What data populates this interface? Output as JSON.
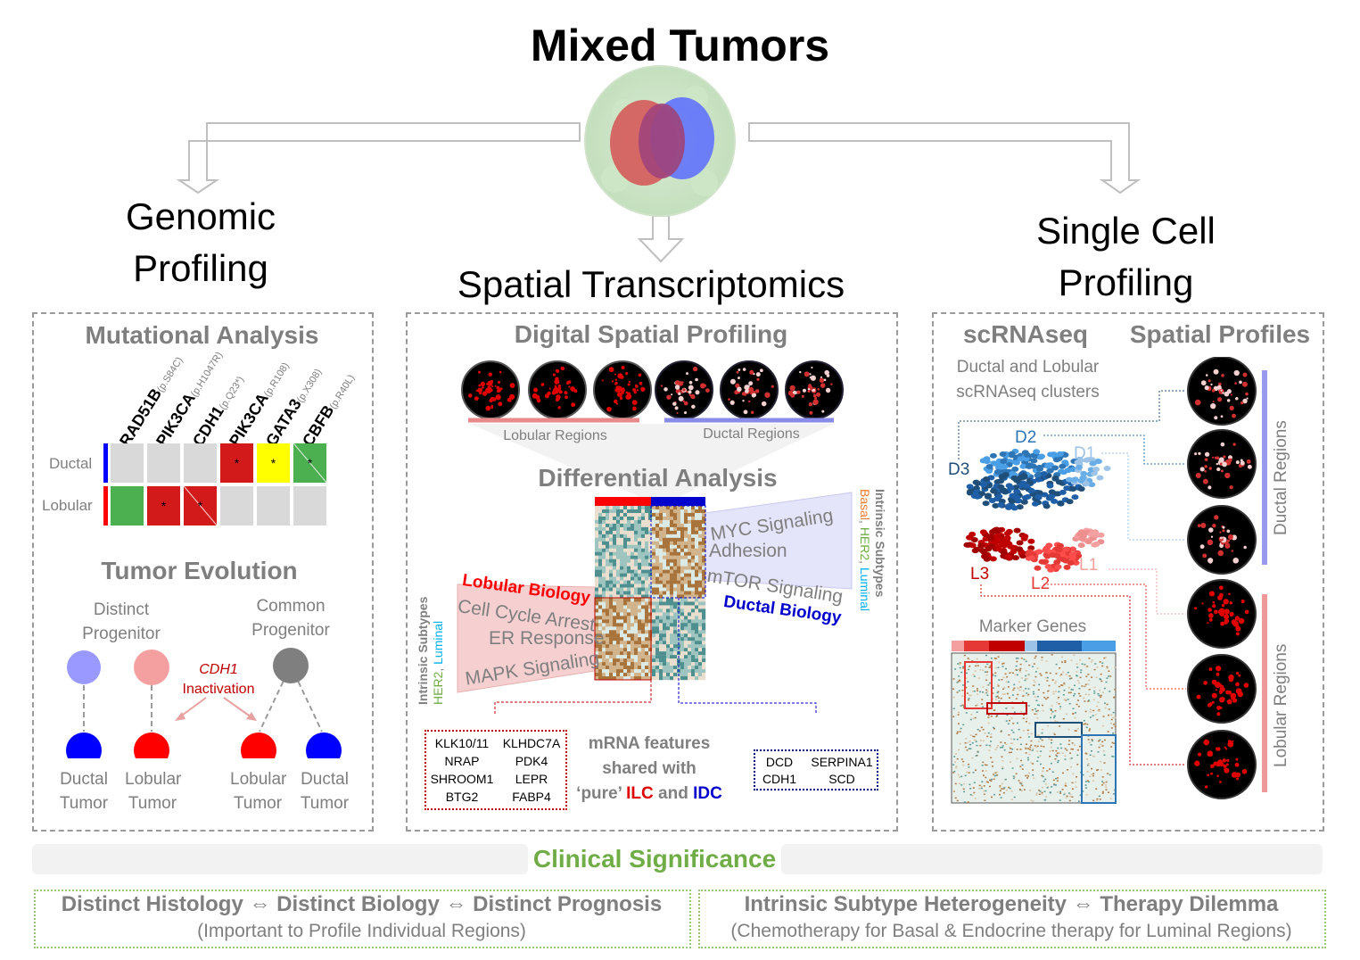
{
  "title": "Mixed Tumors",
  "sections": {
    "genomic": [
      "Genomic",
      "Profiling"
    ],
    "spatial": "Spatial Transcriptomics",
    "single_cell": [
      "Single Cell",
      "Profiling"
    ]
  },
  "genomic": {
    "mutational_title": "Mutational Analysis",
    "genes": [
      {
        "name": "RAD51B",
        "variant": "(p.S84C)"
      },
      {
        "name": "PIK3CA",
        "variant": "(p.H1047R)"
      },
      {
        "name": "CDH1",
        "variant": "(p.Q23*)"
      },
      {
        "name": "PIK3CA",
        "variant": "(p.R108)"
      },
      {
        "name": "GATA3",
        "variant": "(p.X308)"
      },
      {
        "name": "CBFB",
        "variant": "(p.R40L)"
      }
    ],
    "rows": [
      {
        "label": "Ductal",
        "bar_color": "#0000ff",
        "cells": [
          {
            "color": "#d9d9d9",
            "mark": ""
          },
          {
            "color": "#d9d9d9",
            "mark": ""
          },
          {
            "color": "#d9d9d9",
            "mark": ""
          },
          {
            "color": "#d21a1a",
            "mark": "*"
          },
          {
            "color": "#ffff00",
            "mark": "*"
          },
          {
            "color": "#4caf50",
            "mark": "*",
            "split": true
          }
        ]
      },
      {
        "label": "Lobular",
        "bar_color": "#ff0000",
        "cells": [
          {
            "color": "#4caf50",
            "mark": ""
          },
          {
            "color": "#d21a1a",
            "mark": "*"
          },
          {
            "color": "#d21a1a",
            "mark": "*",
            "split": true
          },
          {
            "color": "#d9d9d9",
            "mark": ""
          },
          {
            "color": "#d9d9d9",
            "mark": ""
          },
          {
            "color": "#d9d9d9",
            "mark": ""
          }
        ]
      }
    ],
    "evolution_title": "Tumor Evolution",
    "distinct_progenitor": [
      "Distinct",
      "Progenitor"
    ],
    "common_progenitor": [
      "Common",
      "Progenitor"
    ],
    "inactivation": [
      "CDH1",
      "Inactivation"
    ],
    "tumors": [
      [
        "Ductal",
        "Tumor"
      ],
      [
        "Lobular",
        "Tumor"
      ],
      [
        "Lobular",
        "Tumor"
      ],
      [
        "Ductal",
        "Tumor"
      ]
    ]
  },
  "spatial": {
    "dsp_title": "Digital Spatial Profiling",
    "lobular_regions": "Lobular Regions",
    "ductal_regions": "Ductal Regions",
    "diff_title": "Differential Analysis",
    "lobular_biology": "Lobular Biology",
    "ductal_biology": "Ductal Biology",
    "lobular_pathways": [
      "Cell Cycle Arrest",
      "ER Response",
      "MAPK Signaling"
    ],
    "ductal_pathways": [
      "MYC Signaling",
      "Adhesion",
      "mTOR Signaling"
    ],
    "intrinsic_subtypes": "Intrinsic Subtypes",
    "left_subtypes": [
      {
        "t": "HER2",
        "c": "#70ad47"
      },
      {
        "t": ", ",
        "c": "#7f7f7f"
      },
      {
        "t": "Luminal",
        "c": "#00b0f0"
      }
    ],
    "right_subtypes": [
      {
        "t": "Basal",
        "c": "#ed7d31"
      },
      {
        "t": ", ",
        "c": "#7f7f7f"
      },
      {
        "t": "HER2",
        "c": "#70ad47"
      },
      {
        "t": ", ",
        "c": "#7f7f7f"
      },
      {
        "t": "Luminal",
        "c": "#00b0f0"
      }
    ],
    "lobular_genes": [
      "KLK10/11",
      "KLHDC7A",
      "NRAP",
      "PDK4",
      "SHROOM1",
      "LEPR",
      "BTG2",
      "FABP4"
    ],
    "ductal_genes": [
      "DCD",
      "SERPINA1",
      "CDH1",
      "SCD"
    ],
    "mrna_line1": "mRNA features",
    "mrna_line2": "shared with",
    "mrna_pure": "‘pure’",
    "mrna_ilc": "ILC",
    "mrna_and": "and",
    "mrna_idc": "IDC"
  },
  "single_cell": {
    "scrna_title": "scRNAseq",
    "spatial_profiles_title": "Spatial Profiles",
    "clusters_caption": [
      "Ductal and Lobular",
      "scRNAseq clusters"
    ],
    "cluster_labels": [
      {
        "t": "D2",
        "c": "#2e75b6"
      },
      {
        "t": "D1",
        "c": "#9dc3e6"
      },
      {
        "t": "D3",
        "c": "#1f4e79"
      },
      {
        "t": "L1",
        "c": "#f4a0a0"
      },
      {
        "t": "L3",
        "c": "#c00000"
      },
      {
        "t": "L2",
        "c": "#e53935"
      }
    ],
    "marker_genes": "Marker Genes",
    "ductal_regions": "Ductal Regions",
    "lobular_regions": "Lobular Regions"
  },
  "clinical": {
    "title": "Clinical Significance",
    "left_main": "Distinct Histology ⇔ Distinct Biology ⇔ Distinct Prognosis",
    "left_sub": "(Important to Profile Individual Regions)",
    "right_main": "Intrinsic Subtype Heterogeneity ⇔ Therapy Dilemma",
    "right_sub": "(Chemotherapy for Basal & Endocrine therapy for Luminal Regions)"
  }
}
